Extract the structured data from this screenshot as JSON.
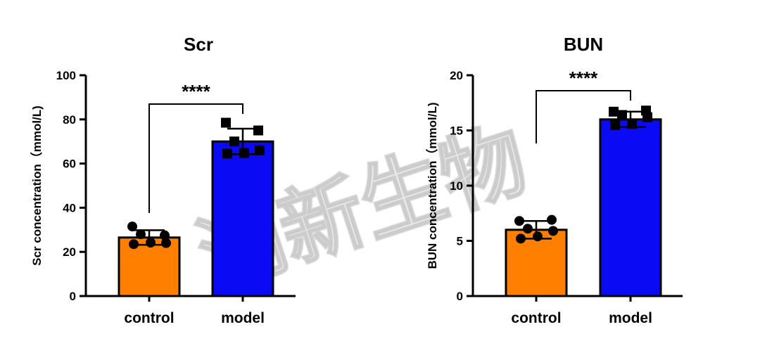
{
  "watermark": "潮新生物",
  "colors": {
    "control": "#FF8000",
    "model": "#0A0AF5",
    "axis": "#000000"
  },
  "chart_data": [
    {
      "type": "bar",
      "title": "Scr",
      "ylabel": "Scr concentration（mmol/L)",
      "categories": [
        "control",
        "model"
      ],
      "values": [
        26.5,
        70
      ],
      "error": [
        3.3,
        5.8
      ],
      "ylim": [
        0,
        100
      ],
      "yticks": [
        0,
        20,
        40,
        60,
        80,
        100
      ],
      "ytick_labels": [
        "0",
        "20",
        "40",
        "60",
        "80",
        "100"
      ],
      "significance": "****",
      "points": [
        [
          31.5,
          27.5,
          28.0,
          24.0,
          23.5,
          24.2
        ],
        [
          78.5,
          75.0,
          70.0,
          66.0,
          64.5,
          64.8
        ]
      ],
      "markers": [
        "circle",
        "square"
      ]
    },
    {
      "type": "bar",
      "title": "BUN",
      "ylabel": "BUN concentration（mmol/L)",
      "categories": [
        "control",
        "model"
      ],
      "values": [
        6.0,
        16.0
      ],
      "error": [
        0.8,
        0.7
      ],
      "ylim": [
        0,
        20
      ],
      "yticks": [
        0,
        5,
        10,
        15,
        20
      ],
      "ytick_labels": [
        "0",
        "5",
        "10",
        "15",
        "20"
      ],
      "significance": "****",
      "points": [
        [
          6.8,
          6.9,
          6.1,
          5.9,
          5.2,
          5.4
        ],
        [
          16.7,
          16.8,
          16.4,
          16.2,
          15.5,
          15.6
        ]
      ],
      "markers": [
        "circle",
        "square"
      ]
    }
  ]
}
